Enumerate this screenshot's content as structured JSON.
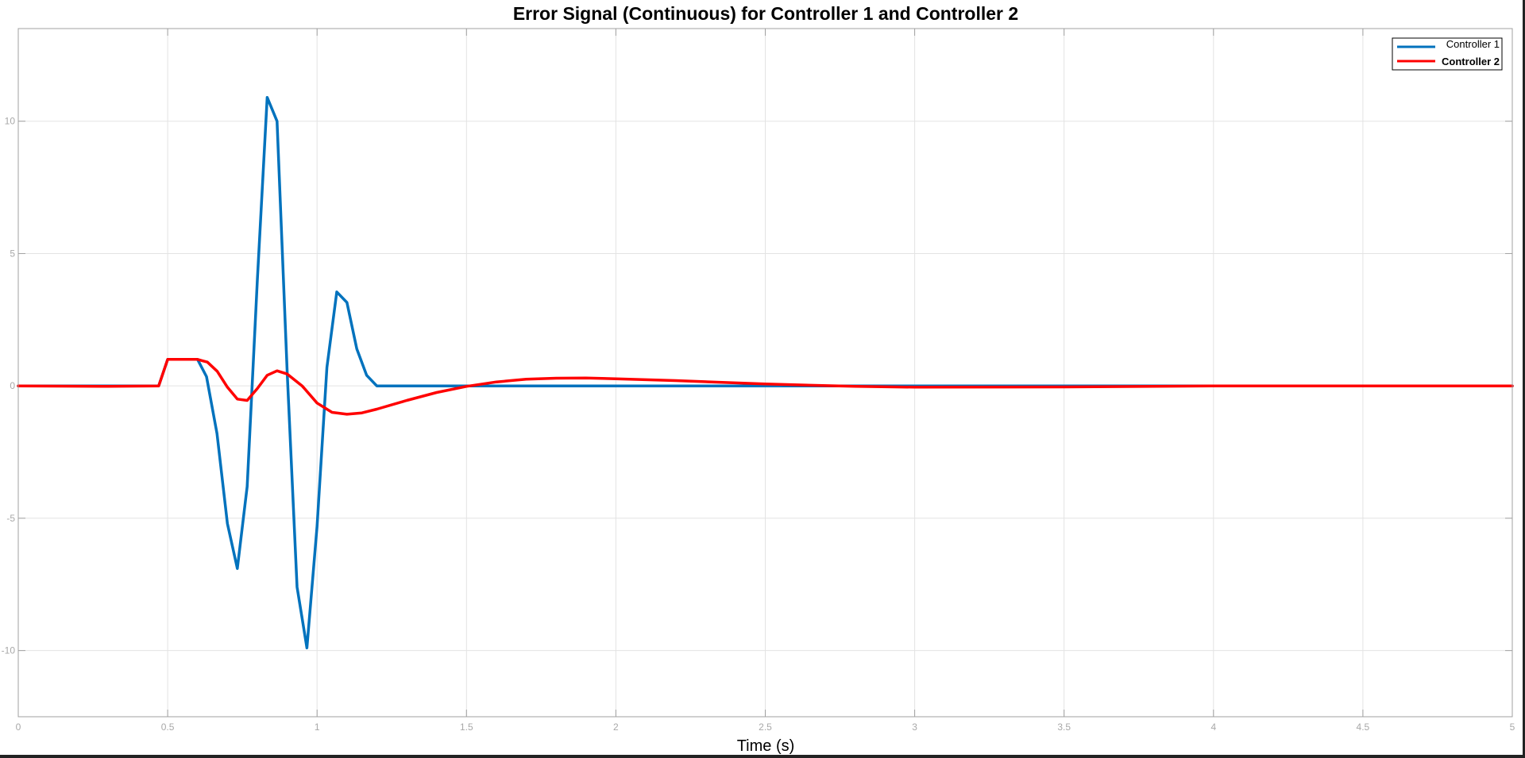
{
  "chart_data": {
    "type": "line",
    "title": "Error Signal (Continuous) for Controller 1 and Controller 2",
    "xlabel": "Time (s)",
    "ylabel": "",
    "xlim": [
      0,
      5
    ],
    "ylim": [
      -12.5,
      13.5
    ],
    "xticks": [
      0,
      0.5,
      1,
      1.5,
      2,
      2.5,
      3,
      3.5,
      4,
      4.5,
      5
    ],
    "xtick_labels": [
      "0",
      "0.5",
      "1",
      "1.5",
      "2",
      "2.5",
      "3",
      "3.5",
      "4",
      "4.5",
      "5"
    ],
    "yticks": [
      -10,
      -5,
      0,
      5,
      10
    ],
    "ytick_labels": [
      "-10",
      "-5",
      "0",
      "5",
      "10"
    ],
    "grid": true,
    "legend_position": "top-right",
    "series": [
      {
        "name": "Controller 1",
        "color": "#0072bd",
        "x": [
          0,
          0.47,
          0.5,
          0.6,
          0.63,
          0.665,
          0.7,
          0.733,
          0.766,
          0.8,
          0.833,
          0.866,
          0.9,
          0.933,
          0.966,
          1.0,
          1.033,
          1.066,
          1.1,
          1.133,
          1.166,
          1.2,
          1.5,
          2.0,
          3.0,
          5.0
        ],
        "y": [
          0,
          0,
          1.0,
          1.0,
          0.35,
          -1.8,
          -5.2,
          -6.9,
          -3.8,
          4.0,
          10.9,
          10.0,
          0.5,
          -7.6,
          -9.9,
          -5.3,
          0.7,
          3.55,
          3.15,
          1.4,
          0.4,
          0.0,
          0.0,
          0.0,
          0.0,
          0.0
        ]
      },
      {
        "name": "Controller 2",
        "color": "#ff0000",
        "x": [
          0,
          0.3,
          0.47,
          0.5,
          0.6,
          0.633,
          0.666,
          0.7,
          0.733,
          0.766,
          0.8,
          0.833,
          0.866,
          0.9,
          0.95,
          1.0,
          1.05,
          1.1,
          1.15,
          1.2,
          1.3,
          1.4,
          1.5,
          1.6,
          1.7,
          1.8,
          1.9,
          2.0,
          2.2,
          2.5,
          2.8,
          3.0,
          3.5,
          4.0,
          5.0
        ],
        "y": [
          0,
          -0.02,
          0,
          1.0,
          1.0,
          0.9,
          0.55,
          -0.05,
          -0.5,
          -0.55,
          -0.1,
          0.4,
          0.57,
          0.45,
          0.0,
          -0.65,
          -1.0,
          -1.07,
          -1.02,
          -0.88,
          -0.55,
          -0.25,
          -0.02,
          0.15,
          0.25,
          0.29,
          0.3,
          0.27,
          0.2,
          0.07,
          -0.02,
          -0.05,
          -0.04,
          0.0,
          0.0
        ]
      }
    ]
  }
}
